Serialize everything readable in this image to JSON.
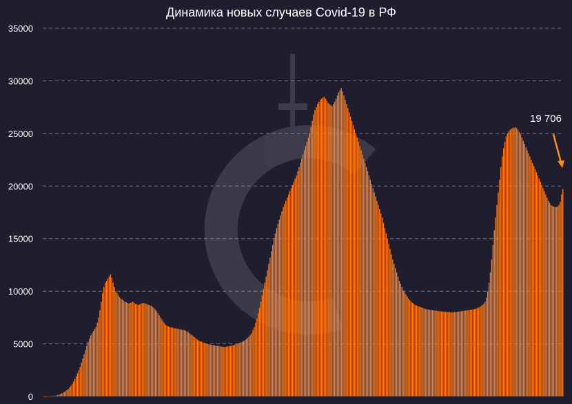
{
  "chart_data": {
    "type": "bar",
    "title": "Динамика новых случаев Covid-19 в РФ",
    "xlabel": "",
    "ylabel": "",
    "ylim": [
      0,
      35000
    ],
    "yticks": [
      0,
      5000,
      10000,
      15000,
      20000,
      25000,
      30000,
      35000
    ],
    "y_tick_labels": [
      "0",
      "5000",
      "10000",
      "15000",
      "20000",
      "25000",
      "30000",
      "35000"
    ],
    "grid": true,
    "bar_color": "#ff7a1a",
    "background_color": "#1f1d2e",
    "annotation": {
      "text": "19 706",
      "value": 19706,
      "arrow_color": "#ff8c1a",
      "points_to": "last-bar"
    },
    "watermark": "logo",
    "resolution": "daily",
    "values": [
      2,
      3,
      5,
      8,
      12,
      18,
      25,
      35,
      50,
      70,
      95,
      130,
      170,
      220,
      280,
      350,
      420,
      500,
      600,
      700,
      850,
      1000,
      1200,
      1400,
      1650,
      1900,
      2200,
      2500,
      2800,
      3200,
      3600,
      4000,
      4400,
      4800,
      5200,
      5500,
      5800,
      6000,
      6200,
      6400,
      6600,
      7000,
      7500,
      8200,
      9000,
      9800,
      10400,
      10800,
      11000,
      11200,
      11400,
      11600,
      11300,
      10800,
      10400,
      10000,
      9800,
      9600,
      9400,
      9300,
      9200,
      9100,
      9000,
      8950,
      8900,
      8850,
      8900,
      8950,
      9000,
      8900,
      8800,
      8750,
      8700,
      8750,
      8800,
      8850,
      8900,
      8850,
      8800,
      8750,
      8700,
      8650,
      8600,
      8500,
      8400,
      8250,
      8100,
      7900,
      7700,
      7500,
      7300,
      7100,
      6950,
      6800,
      6700,
      6650,
      6600,
      6580,
      6550,
      6500,
      6480,
      6450,
      6420,
      6400,
      6380,
      6350,
      6320,
      6300,
      6250,
      6200,
      6100,
      6000,
      5900,
      5800,
      5700,
      5600,
      5500,
      5400,
      5300,
      5250,
      5200,
      5150,
      5100,
      5050,
      5000,
      4980,
      4950,
      4920,
      4900,
      4880,
      4850,
      4820,
      4800,
      4780,
      4760,
      4740,
      4720,
      4700,
      4710,
      4730,
      4750,
      4780,
      4800,
      4830,
      4860,
      4900,
      4950,
      5000,
      5050,
      5100,
      5150,
      5200,
      5280,
      5350,
      5450,
      5550,
      5700,
      5850,
      6000,
      6300,
      6600,
      7000,
      7400,
      7900,
      8400,
      9000,
      9600,
      10200,
      10800,
      11400,
      12000,
      12600,
      13200,
      13800,
      14400,
      15000,
      15500,
      16000,
      16400,
      16800,
      17200,
      17600,
      18000,
      18300,
      18600,
      18900,
      19200,
      19500,
      19800,
      20100,
      20400,
      20700,
      21000,
      21400,
      21800,
      22200,
      22600,
      23000,
      23400,
      23800,
      24200,
      24600,
      25000,
      25600,
      26200,
      26800,
      27200,
      27500,
      27800,
      28000,
      28200,
      28300,
      28400,
      28500,
      28300,
      28100,
      27900,
      27800,
      27700,
      27600,
      27800,
      28000,
      28300,
      28600,
      28900,
      29100,
      29300,
      29000,
      28600,
      28200,
      27800,
      27400,
      27000,
      26600,
      26200,
      25800,
      25400,
      25000,
      24600,
      24200,
      23800,
      23400,
      23000,
      22600,
      22200,
      21800,
      21400,
      21000,
      20600,
      20200,
      19800,
      19400,
      19000,
      18600,
      18200,
      17800,
      17400,
      17000,
      16500,
      16000,
      15500,
      15000,
      14500,
      14000,
      13500,
      13000,
      12600,
      12200,
      11800,
      11400,
      11000,
      10700,
      10400,
      10100,
      9900,
      9700,
      9500,
      9300,
      9150,
      9000,
      8900,
      8800,
      8700,
      8650,
      8600,
      8550,
      8500,
      8450,
      8400,
      8350,
      8300,
      8280,
      8260,
      8240,
      8220,
      8200,
      8180,
      8160,
      8140,
      8120,
      8100,
      8090,
      8080,
      8070,
      8060,
      8050,
      8040,
      8030,
      8020,
      8010,
      8000,
      8000,
      8010,
      8020,
      8040,
      8060,
      8080,
      8100,
      8120,
      8140,
      8160,
      8180,
      8200,
      8220,
      8240,
      8260,
      8280,
      8300,
      8350,
      8400,
      8450,
      8500,
      8600,
      8700,
      8800,
      9000,
      9400,
      10000,
      10800,
      11800,
      13000,
      14400,
      15800,
      17000,
      18200,
      19400,
      20600,
      21800,
      22800,
      23600,
      24200,
      24700,
      25000,
      25200,
      25350,
      25450,
      25500,
      25550,
      25600,
      25500,
      25300,
      25100,
      24900,
      24600,
      24300,
      24000,
      23700,
      23400,
      23100,
      22800,
      22500,
      22200,
      21900,
      21600,
      21300,
      21000,
      20700,
      20400,
      20100,
      19800,
      19500,
      19200,
      18900,
      18600,
      18400,
      18200,
      18100,
      18050,
      18000,
      18000,
      18050,
      18200,
      18500,
      19200,
      19706
    ]
  }
}
